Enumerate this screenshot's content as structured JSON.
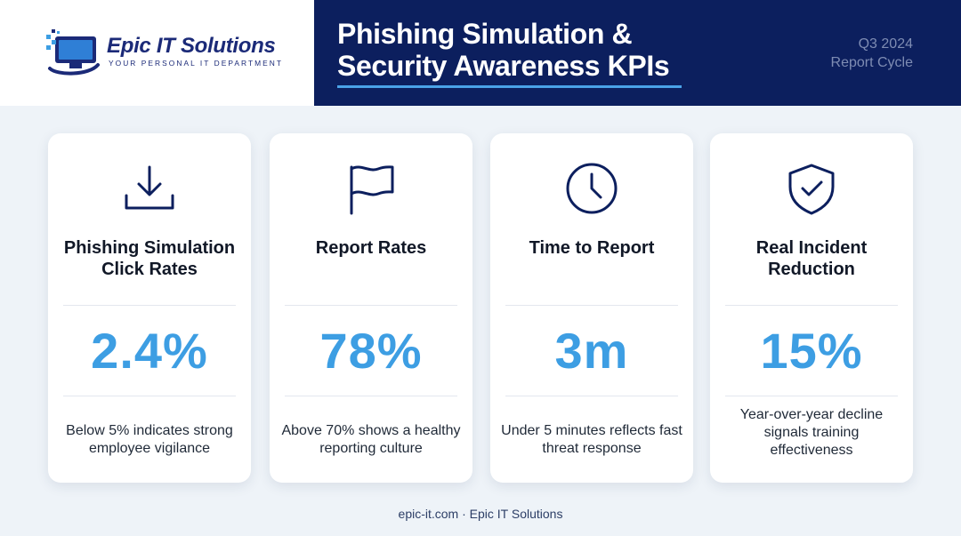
{
  "brand": {
    "name": "Epic IT Solutions",
    "tagline": "YOUR PERSONAL IT DEPARTMENT"
  },
  "header": {
    "title_line1": "Phishing Simulation &",
    "title_line2": "Security Awareness KPIs",
    "cycle_line1": "Q3 2024",
    "cycle_line2": "Report Cycle"
  },
  "kpis": [
    {
      "icon": "download-icon",
      "title": "Phishing Simulation Click Rates",
      "value": "2.4%",
      "description": "Below 5% indicates strong employee vigilance"
    },
    {
      "icon": "flag-icon",
      "title": "Report Rates",
      "value": "78%",
      "description": "Above 70% shows a healthy reporting culture"
    },
    {
      "icon": "clock-icon",
      "title": "Time to Report",
      "value": "3m",
      "description": "Under 5 minutes reflects fast threat response"
    },
    {
      "icon": "shield-check-icon",
      "title": "Real Incident Reduction",
      "value": "15%",
      "description": "Year-over-year decline signals training effectiveness"
    }
  ],
  "colors": {
    "navy": "#0c1f5e",
    "accent_blue": "#3d9ee3",
    "brand_blue": "#1b2a78"
  },
  "footer": {
    "text": "epic-it.com · Epic IT Solutions"
  }
}
